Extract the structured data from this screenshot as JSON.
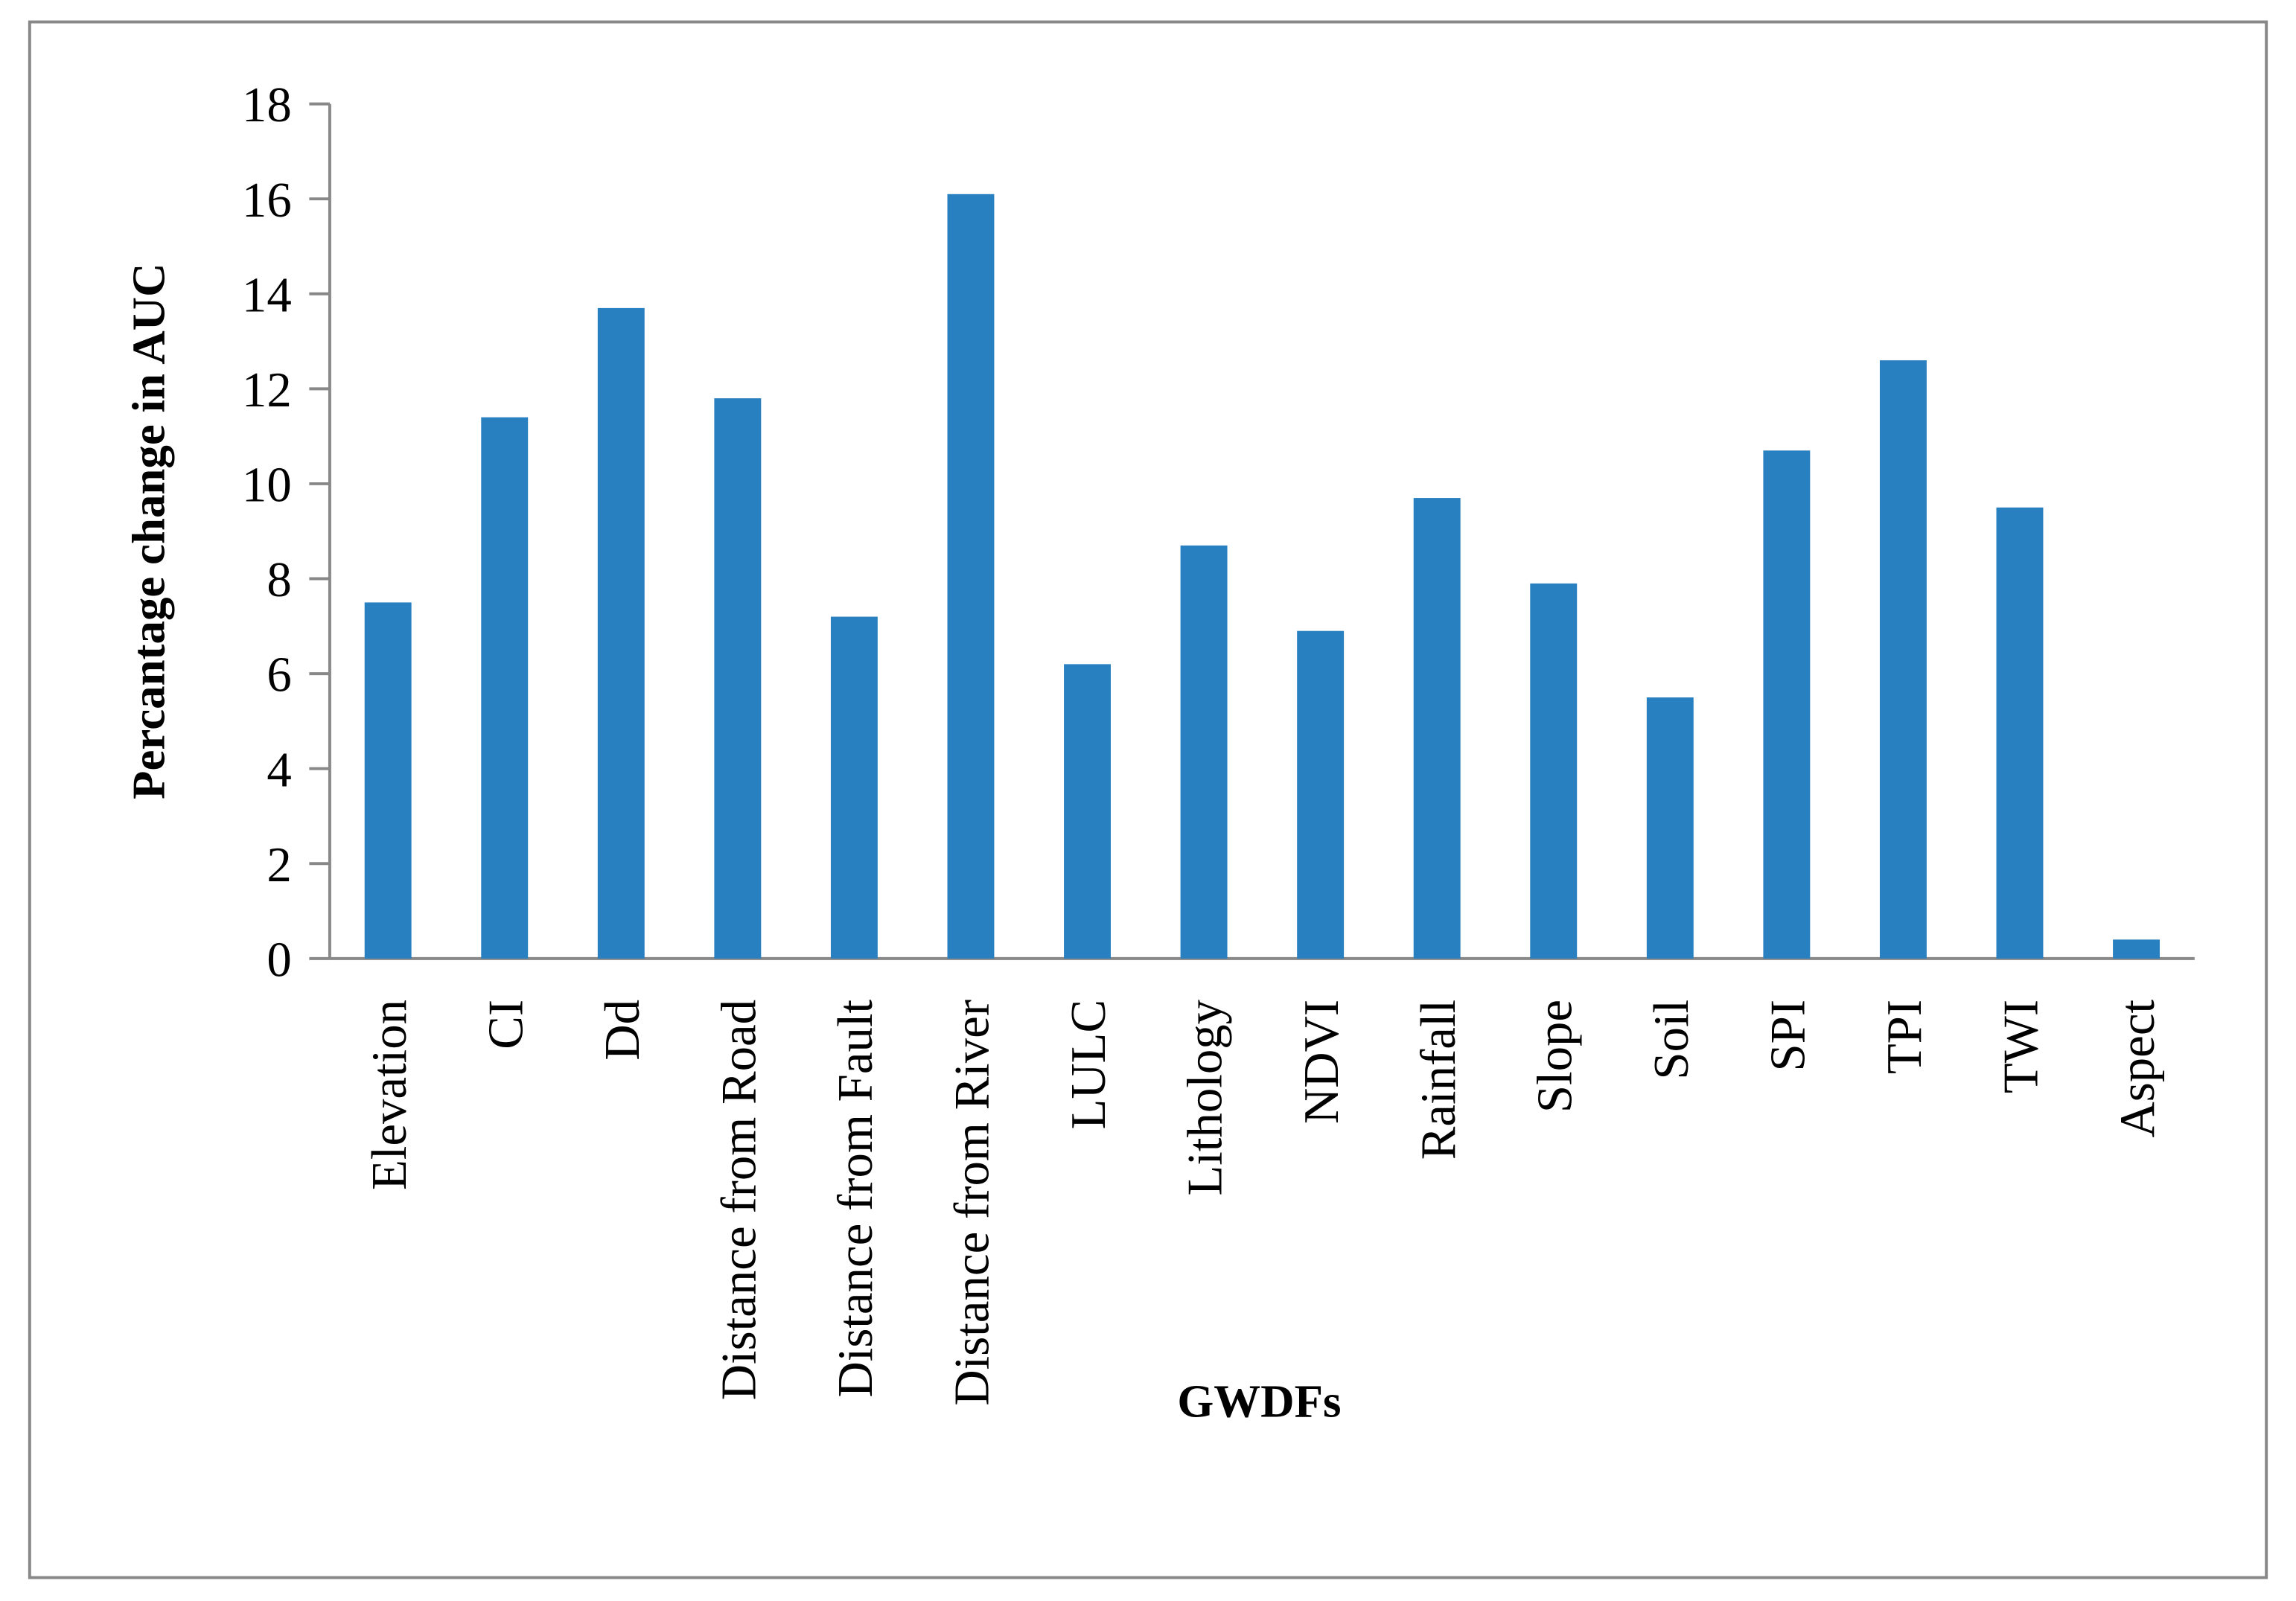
{
  "chart_data": {
    "type": "bar",
    "x_label": "GWDFs",
    "y_label": "Percantage change in AUC",
    "categories": [
      "Elevation",
      "CI",
      "Dd",
      "Distance from Road",
      "Distance from Fault",
      "Distance from River",
      "LULC",
      "Lithology",
      "NDVI",
      "Rainfall",
      "Slope",
      "Soil",
      "SPI",
      "TPI",
      "TWI",
      "Aspect"
    ],
    "values": [
      7.5,
      11.4,
      13.7,
      11.8,
      7.2,
      16.1,
      6.2,
      8.7,
      6.9,
      9.7,
      7.9,
      5.5,
      10.7,
      12.6,
      9.5,
      0.4
    ],
    "color": "#2980c0",
    "ylim": [
      0,
      18
    ],
    "yticks": [
      0,
      2,
      4,
      6,
      8,
      10,
      12,
      14,
      16,
      18
    ],
    "grid": false
  }
}
